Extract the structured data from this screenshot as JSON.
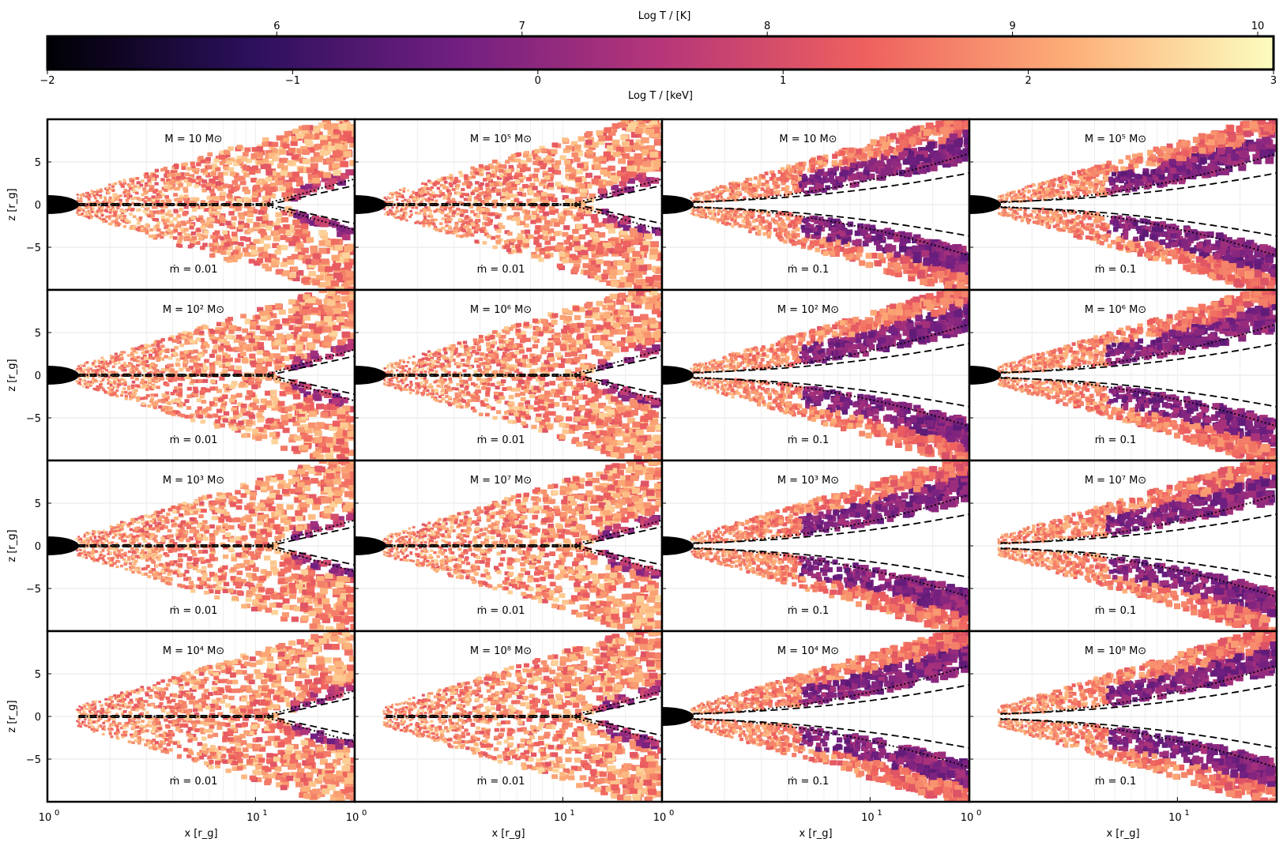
{
  "colorbar": {
    "top_label": "Log T / [K]",
    "bottom_label": "Log T / [keV]",
    "top_ticks": [
      "6",
      "7",
      "8",
      "9",
      "10"
    ],
    "top_tick_values": [
      6,
      7,
      8,
      9,
      10
    ],
    "bottom_ticks": [
      "−2",
      "−1",
      "0",
      "1",
      "2",
      "3"
    ],
    "bottom_tick_values": [
      -2,
      -1,
      0,
      1,
      2,
      3
    ],
    "kev_range": [
      -2,
      3
    ],
    "colors": [
      "#000004",
      "#2c105c",
      "#711f81",
      "#b63679",
      "#ee605e",
      "#fdae78",
      "#fcfdbf"
    ]
  },
  "axes": {
    "xlabel": "x [r_g]",
    "ylabel": "z [r_g]",
    "xscale": "log",
    "xlim": [
      1,
      30
    ],
    "ylim": [
      -10,
      10
    ],
    "yticks": [
      "5",
      "0",
      "−5"
    ],
    "ytick_values": [
      5,
      0,
      -5
    ],
    "xtick_major": "10",
    "xtick_major_exp": "0",
    "xtick_mid": "10",
    "xtick_mid_exp": "1"
  },
  "chart_data": {
    "type": "heatmap",
    "title": "",
    "description_columns": [
      {
        "mdot": "ṁ = 0.01",
        "masses": [
          "M = 10 M⊙",
          "M = 10² M⊙",
          "M = 10³ M⊙",
          "M = 10⁴ M⊙"
        ]
      },
      {
        "mdot": "ṁ = 0.01",
        "masses": [
          "M = 10⁵ M⊙",
          "M = 10⁶ M⊙",
          "M = 10⁷ M⊙",
          "M = 10⁸ M⊙"
        ]
      },
      {
        "mdot": "ṁ = 0.1",
        "masses": [
          "M = 10 M⊙",
          "M = 10² M⊙",
          "M = 10³ M⊙",
          "M = 10⁴ M⊙"
        ]
      },
      {
        "mdot": "ṁ = 0.1",
        "masses": [
          "M = 10⁵ M⊙",
          "M = 10⁶ M⊙",
          "M = 10⁷ M⊙",
          "M = 10⁸ M⊙"
        ]
      }
    ],
    "panels": [
      {
        "row": 0,
        "col": 0,
        "mass": "M = 10 M⊙",
        "mdot": "ṁ = 0.01",
        "black_hole_disk": true
      },
      {
        "row": 0,
        "col": 1,
        "mass": "M = 10⁵ M⊙",
        "mdot": "ṁ = 0.01",
        "black_hole_disk": true
      },
      {
        "row": 0,
        "col": 2,
        "mass": "M = 10 M⊙",
        "mdot": "ṁ = 0.1",
        "black_hole_disk": true
      },
      {
        "row": 0,
        "col": 3,
        "mass": "M = 10⁵ M⊙",
        "mdot": "ṁ = 0.1",
        "black_hole_disk": true
      },
      {
        "row": 1,
        "col": 0,
        "mass": "M = 10² M⊙",
        "mdot": "ṁ = 0.01",
        "black_hole_disk": true
      },
      {
        "row": 1,
        "col": 1,
        "mass": "M = 10⁶ M⊙",
        "mdot": "ṁ = 0.01",
        "black_hole_disk": true
      },
      {
        "row": 1,
        "col": 2,
        "mass": "M = 10² M⊙",
        "mdot": "ṁ = 0.1",
        "black_hole_disk": true
      },
      {
        "row": 1,
        "col": 3,
        "mass": "M = 10⁶ M⊙",
        "mdot": "ṁ = 0.1",
        "black_hole_disk": true
      },
      {
        "row": 2,
        "col": 0,
        "mass": "M = 10³ M⊙",
        "mdot": "ṁ = 0.01",
        "black_hole_disk": true
      },
      {
        "row": 2,
        "col": 1,
        "mass": "M = 10⁷ M⊙",
        "mdot": "ṁ = 0.01",
        "black_hole_disk": true
      },
      {
        "row": 2,
        "col": 2,
        "mass": "M = 10³ M⊙",
        "mdot": "ṁ = 0.1",
        "black_hole_disk": true
      },
      {
        "row": 2,
        "col": 3,
        "mass": "M = 10⁷ M⊙",
        "mdot": "ṁ = 0.1",
        "black_hole_disk": false
      },
      {
        "row": 3,
        "col": 0,
        "mass": "M = 10⁴ M⊙",
        "mdot": "ṁ = 0.01",
        "black_hole_disk": false
      },
      {
        "row": 3,
        "col": 1,
        "mass": "M = 10⁸ M⊙",
        "mdot": "ṁ = 0.01",
        "black_hole_disk": false
      },
      {
        "row": 3,
        "col": 2,
        "mass": "M = 10⁴ M⊙",
        "mdot": "ṁ = 0.1",
        "black_hole_disk": true
      },
      {
        "row": 3,
        "col": 3,
        "mass": "M = 10⁸ M⊙",
        "mdot": "ṁ = 0.1",
        "black_hole_disk": false
      }
    ]
  }
}
